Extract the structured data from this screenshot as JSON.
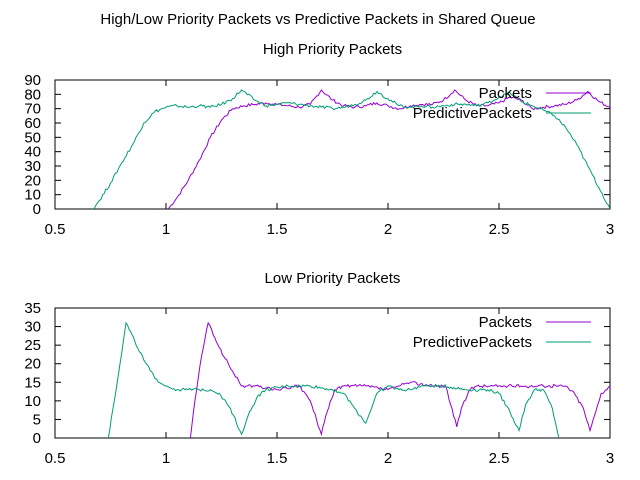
{
  "suptitle": "High/Low Priority Packets vs Predictive Packets in Shared Queue",
  "chart_data": [
    {
      "type": "line",
      "title": "High Priority Packets",
      "xlabel": "",
      "ylabel": "",
      "xlim": [
        0.5,
        3
      ],
      "ylim": [
        0,
        90
      ],
      "xticks": [
        "0.5",
        "1",
        "1.5",
        "2",
        "2.5",
        "3"
      ],
      "yticks": [
        "0",
        "10",
        "20",
        "30",
        "40",
        "50",
        "60",
        "70",
        "80",
        "90"
      ],
      "grid": false,
      "legend": "top-right",
      "series": [
        {
          "name": "Packets",
          "color": "#9400d3",
          "x": [
            1.01,
            1.05,
            1.1,
            1.15,
            1.2,
            1.25,
            1.3,
            1.35,
            1.4,
            1.45,
            1.5,
            1.55,
            1.6,
            1.65,
            1.7,
            1.75,
            1.8,
            1.85,
            1.9,
            1.95,
            2.0,
            2.05,
            2.1,
            2.15,
            2.2,
            2.25,
            2.3,
            2.35,
            2.4,
            2.45,
            2.5,
            2.55,
            2.6,
            2.65,
            2.7,
            2.75,
            2.8,
            2.85,
            2.9,
            2.95,
            3.0
          ],
          "y": [
            0,
            8,
            20,
            34,
            50,
            62,
            70,
            72,
            73,
            74,
            73,
            72,
            71,
            73,
            83,
            76,
            72,
            71,
            72,
            74,
            72,
            70,
            72,
            73,
            73,
            76,
            83,
            76,
            72,
            72,
            74,
            78,
            76,
            70,
            71,
            72,
            73,
            76,
            82,
            75,
            71
          ]
        },
        {
          "name": "PredictivePackets",
          "color": "#009e73",
          "x": [
            0.67,
            0.7,
            0.75,
            0.8,
            0.85,
            0.9,
            0.95,
            1.0,
            1.05,
            1.1,
            1.15,
            1.2,
            1.25,
            1.3,
            1.34,
            1.4,
            1.45,
            1.5,
            1.55,
            1.6,
            1.65,
            1.7,
            1.75,
            1.8,
            1.85,
            1.9,
            1.95,
            2.0,
            2.05,
            2.1,
            2.15,
            2.2,
            2.25,
            2.3,
            2.35,
            2.4,
            2.45,
            2.5,
            2.55,
            2.6,
            2.65,
            2.7,
            2.75,
            2.8,
            2.85,
            2.9,
            2.95,
            3.0
          ],
          "y": [
            0,
            6,
            18,
            32,
            45,
            60,
            68,
            71,
            72,
            71,
            72,
            71,
            73,
            77,
            83,
            76,
            72,
            73,
            74,
            73,
            72,
            71,
            70,
            71,
            73,
            76,
            82,
            77,
            72,
            71,
            72,
            71,
            72,
            73,
            73,
            72,
            74,
            78,
            81,
            75,
            72,
            69,
            65,
            57,
            45,
            30,
            15,
            0
          ]
        }
      ]
    },
    {
      "type": "line",
      "title": "Low Priority Packets",
      "xlabel": "",
      "ylabel": "",
      "xlim": [
        0.5,
        3
      ],
      "ylim": [
        0,
        35
      ],
      "xticks": [
        "0.5",
        "1",
        "1.5",
        "2",
        "2.5",
        "3"
      ],
      "yticks": [
        "0",
        "5",
        "10",
        "15",
        "20",
        "25",
        "30",
        "35"
      ],
      "grid": false,
      "legend": "top-right",
      "series": [
        {
          "name": "Packets",
          "color": "#9400d3",
          "x": [
            1.11,
            1.13,
            1.16,
            1.19,
            1.22,
            1.26,
            1.3,
            1.34,
            1.4,
            1.5,
            1.6,
            1.65,
            1.7,
            1.72,
            1.76,
            1.8,
            1.9,
            2.0,
            2.05,
            2.1,
            2.2,
            2.26,
            2.31,
            2.33,
            2.37,
            2.4,
            2.5,
            2.6,
            2.7,
            2.8,
            2.84,
            2.88,
            2.91,
            2.93,
            2.96,
            3.0
          ],
          "y": [
            0,
            10,
            22,
            31,
            27,
            22,
            18,
            14,
            14,
            13,
            14,
            10,
            1,
            6,
            13,
            14,
            14,
            13,
            14,
            15,
            14,
            14,
            3,
            8,
            13,
            14,
            14,
            14,
            14,
            14,
            12,
            8,
            2,
            6,
            12,
            14
          ]
        },
        {
          "name": "PredictivePackets",
          "color": "#009e73",
          "x": [
            0.74,
            0.78,
            0.82,
            0.86,
            0.9,
            0.95,
            1.0,
            1.05,
            1.1,
            1.15,
            1.2,
            1.24,
            1.29,
            1.34,
            1.37,
            1.41,
            1.45,
            1.55,
            1.65,
            1.75,
            1.8,
            1.85,
            1.9,
            1.95,
            2.0,
            2.05,
            2.1,
            2.15,
            2.2,
            2.25,
            2.35,
            2.45,
            2.5,
            2.55,
            2.59,
            2.62,
            2.66,
            2.7,
            2.74,
            2.77
          ],
          "y": [
            0,
            15,
            31,
            26,
            21,
            16,
            14,
            13,
            13,
            13,
            13,
            12,
            8,
            1,
            6,
            11,
            13,
            14,
            14,
            13,
            12,
            8,
            4,
            12,
            14,
            13,
            13,
            14,
            14,
            14,
            13,
            13,
            12,
            7,
            2,
            9,
            13,
            13,
            8,
            0
          ]
        }
      ]
    }
  ]
}
